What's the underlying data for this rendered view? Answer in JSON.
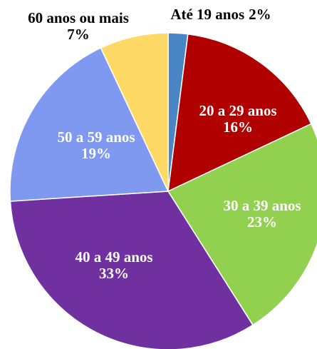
{
  "chart_data": {
    "type": "pie",
    "categories": [
      "Até 19 anos",
      "20 a 29 anos",
      "30 a 39 anos",
      "40 a 49 anos",
      "50 a 59 anos",
      "60 anos ou mais"
    ],
    "values": [
      2,
      16,
      23,
      33,
      19,
      7
    ],
    "value_labels": [
      "2%",
      "16%",
      "23%",
      "33%",
      "19%",
      "7%"
    ],
    "colors": [
      "#4a86c5",
      "#b00000",
      "#92d050",
      "#7030a0",
      "#7f99f0",
      "#ffd966"
    ]
  }
}
